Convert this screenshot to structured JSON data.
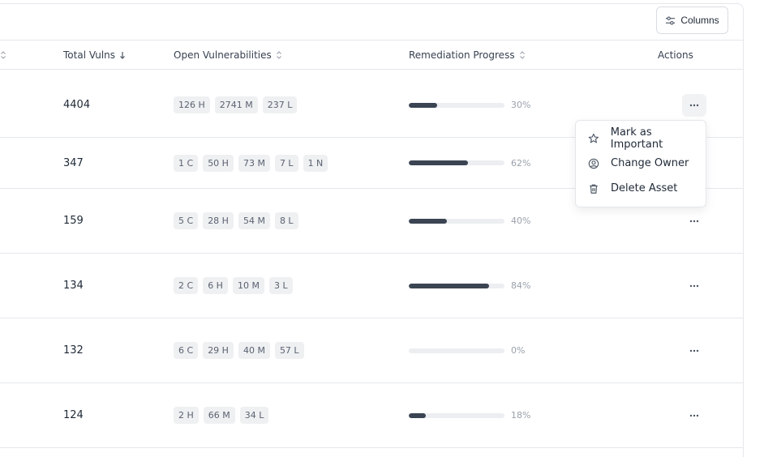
{
  "toolbar": {
    "columns_label": "Columns"
  },
  "headers": {
    "total_vulns": "Total Vulns",
    "open_vulns": "Open Vulnerabilities",
    "remediation": "Remediation Progress",
    "actions": "Actions"
  },
  "rows": [
    {
      "total": "4404",
      "badges": [
        "126 H",
        "2741 M",
        "237 L"
      ],
      "progress": 30,
      "pct_label": "30%"
    },
    {
      "total": "347",
      "badges": [
        "1 C",
        "50 H",
        "73 M",
        "7 L",
        "1 N"
      ],
      "progress": 62,
      "pct_label": "62%"
    },
    {
      "total": "159",
      "badges": [
        "5 C",
        "28 H",
        "54 M",
        "8 L"
      ],
      "progress": 40,
      "pct_label": "40%"
    },
    {
      "total": "134",
      "badges": [
        "2 C",
        "6 H",
        "10 M",
        "3 L"
      ],
      "progress": 84,
      "pct_label": "84%"
    },
    {
      "total": "132",
      "badges": [
        "6 C",
        "29 H",
        "40 M",
        "57 L"
      ],
      "progress": 0,
      "pct_label": "0%"
    },
    {
      "total": "124",
      "badges": [
        "2 H",
        "66 M",
        "34 L"
      ],
      "progress": 18,
      "pct_label": "18%"
    }
  ],
  "menu": {
    "items": [
      {
        "label": "Mark as Important",
        "icon": "star-icon"
      },
      {
        "label": "Change Owner",
        "icon": "user-circle-icon"
      },
      {
        "label": "Delete Asset",
        "icon": "trash-icon"
      }
    ]
  },
  "colors": {
    "progress_fill": "#3b4452",
    "badge_bg": "#eef0f2",
    "border": "#e5e7eb"
  }
}
